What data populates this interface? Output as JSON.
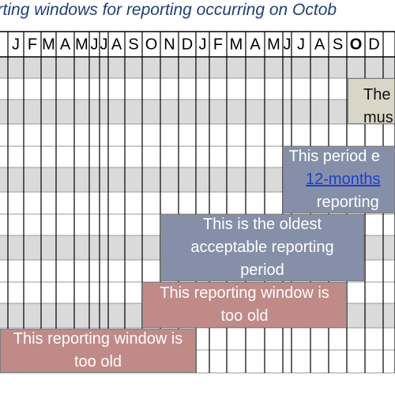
{
  "title": "n reporting windows for reporting occurring on Octob",
  "months": [
    "J",
    "F",
    "M",
    "A",
    "M",
    "J",
    "J",
    "A",
    "S",
    "O",
    "N",
    "D",
    "J",
    "F",
    "M",
    "A",
    "M",
    "J",
    "J",
    "A",
    "S",
    "O",
    "D"
  ],
  "bold_month_index": 21,
  "colors": {
    "title": "#1f3e79",
    "row_gray": "#dadada",
    "line": "#000000",
    "blue_box": "#8590a8",
    "red_box": "#bf8a87",
    "cream_box": "#d9d6c7",
    "link": "#1b3fd4"
  },
  "boxes": {
    "cream": {
      "line1": "The",
      "line2": "mus"
    },
    "current": {
      "line1": "This period e",
      "line2_link": "12-months",
      "line3": "reporting"
    },
    "oldest": {
      "line1": "This is the oldest",
      "line2": "acceptable reporting",
      "line3": "period"
    },
    "too_old_1": {
      "line1": "This reporting window is",
      "line2": "too old"
    },
    "too_old_2": {
      "line1": "This reporting window is",
      "line2": "too old"
    }
  }
}
